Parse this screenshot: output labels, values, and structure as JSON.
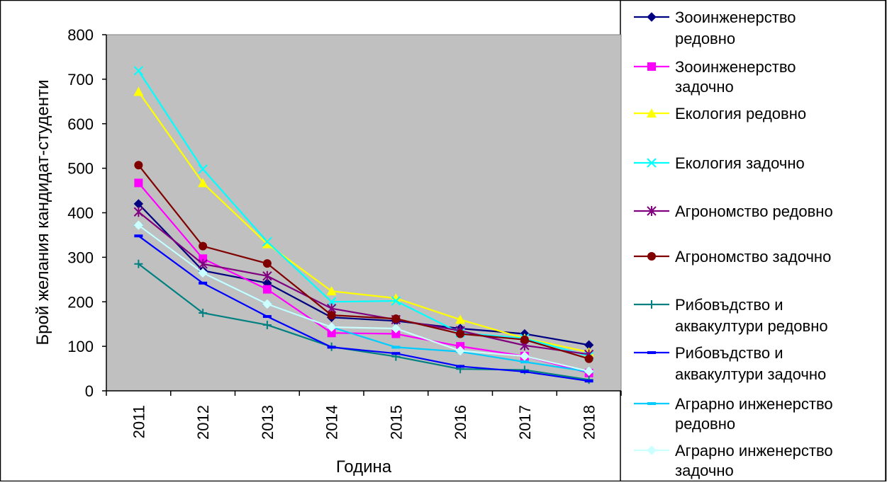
{
  "chart_data": {
    "type": "line",
    "title": "",
    "xlabel": "Година",
    "ylabel": "Брой желания кандидат-студенти",
    "ylim": [
      0,
      800
    ],
    "yticks": [
      0,
      100,
      200,
      300,
      400,
      500,
      600,
      700,
      800
    ],
    "categories": [
      "2011",
      "2012",
      "2013",
      "2014",
      "2015",
      "2016",
      "2017",
      "2018"
    ],
    "grid": false,
    "plot_background": "#c0c0c0",
    "legend_position": "right",
    "series": [
      {
        "name": "Зооинженерство редовно",
        "color": "#000080",
        "marker": "diamond",
        "values": [
          420,
          270,
          242,
          165,
          157,
          140,
          128,
          103
        ]
      },
      {
        "name": "Зооинженерство задочно",
        "color": "#ff00ff",
        "marker": "square",
        "values": [
          467,
          297,
          228,
          130,
          128,
          100,
          78,
          40
        ]
      },
      {
        "name": "Екология редовно",
        "color": "#ffff00",
        "marker": "triangle",
        "values": [
          672,
          467,
          330,
          224,
          208,
          160,
          118,
          87
        ]
      },
      {
        "name": "Екология задочно",
        "color": "#00ffff",
        "marker": "x",
        "values": [
          719,
          498,
          335,
          200,
          202,
          130,
          118,
          78
        ]
      },
      {
        "name": "Агрономство редовно",
        "color": "#800080",
        "marker": "star",
        "values": [
          402,
          285,
          258,
          185,
          160,
          135,
          102,
          82
        ]
      },
      {
        "name": "Агрономство задочно",
        "color": "#800000",
        "marker": "circle",
        "values": [
          507,
          325,
          286,
          170,
          162,
          128,
          115,
          72
        ]
      },
      {
        "name": "Рибовъдство и аквакултури редовно",
        "color": "#008080",
        "marker": "plus",
        "values": [
          285,
          175,
          148,
          99,
          77,
          49,
          47,
          25
        ]
      },
      {
        "name": "Рибовъдство и аквакултури задочно",
        "color": "#0000ff",
        "marker": "dash",
        "values": [
          348,
          242,
          167,
          98,
          84,
          55,
          43,
          22
        ]
      },
      {
        "name": "Аграрно инженерство редовно",
        "color": "#00ccff",
        "marker": "dash",
        "values": [
          372,
          265,
          195,
          143,
          98,
          88,
          65,
          43
        ]
      },
      {
        "name": "Аграрно инженерство задочно",
        "color": "#ccffff",
        "marker": "diamond",
        "values": [
          372,
          265,
          195,
          143,
          140,
          90,
          78,
          44
        ]
      }
    ],
    "legend_labels": [
      [
        "Зооинженерство",
        "редовно"
      ],
      [
        "Зооинженерство",
        "задочно"
      ],
      [
        "Екология редовно"
      ],
      [
        "Екология задочно"
      ],
      [
        "Агрономство редовно"
      ],
      [
        "Агрономство задочно"
      ],
      [
        "Рибовъдство и",
        "аквакултури редовно"
      ],
      [
        "Рибовъдство и",
        "аквакултури задочно"
      ],
      [
        "Аграрно инженерство",
        "редовно"
      ],
      [
        "Аграрно инженерство",
        "задочно"
      ]
    ]
  }
}
